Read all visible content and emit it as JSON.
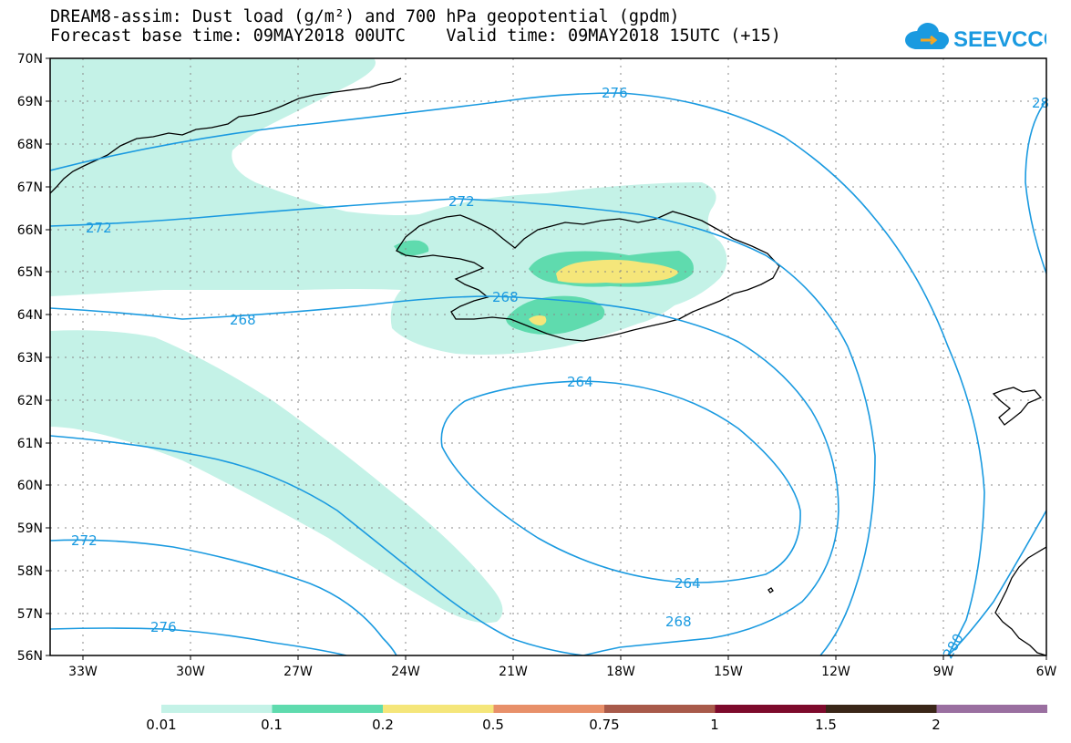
{
  "title_line1": "DREAM8-assim: Dust load (g/m²) and 700 hPa geopotential (gpdm)",
  "title_line2": "Forecast base time: 09MAY2018 00UTC    Valid time: 09MAY2018 15UTC (+15)",
  "logo_text": "SEEVCCC",
  "lat_labels": [
    "70N",
    "69N",
    "68N",
    "67N",
    "66N",
    "65N",
    "64N",
    "63N",
    "62N",
    "61N",
    "60N",
    "59N",
    "58N",
    "57N",
    "56N"
  ],
  "lon_labels": [
    "33W",
    "30W",
    "27W",
    "24W",
    "21W",
    "18W",
    "15W",
    "12W",
    "9W",
    "6W"
  ],
  "contour_labels": {
    "c276_top": "276",
    "c272_left": "272",
    "c272_mid": "272",
    "c268_left": "268",
    "c268_mid": "268",
    "c264_top": "264",
    "c264_bottom": "264",
    "c268_bottom": "268",
    "c272_bottomleft": "272",
    "c276_bottomleft": "276",
    "c280": "280",
    "c28_edge": "28"
  },
  "legend": {
    "colors": [
      "#c4f2e7",
      "#5fdbae",
      "#f5e67a",
      "#e8906a",
      "#a85a4a",
      "#7d0a2c",
      "#3a2618",
      "#9a6fa0"
    ],
    "labels": [
      "0.01",
      "0.1",
      "0.2",
      "0.5",
      "0.75",
      "1",
      "1.5",
      "2"
    ]
  },
  "colors": {
    "contour": "#1a9ae0",
    "dust_low": "#c4f2e7",
    "dust_mid": "#5fdbae",
    "dust_high": "#f5e67a"
  }
}
